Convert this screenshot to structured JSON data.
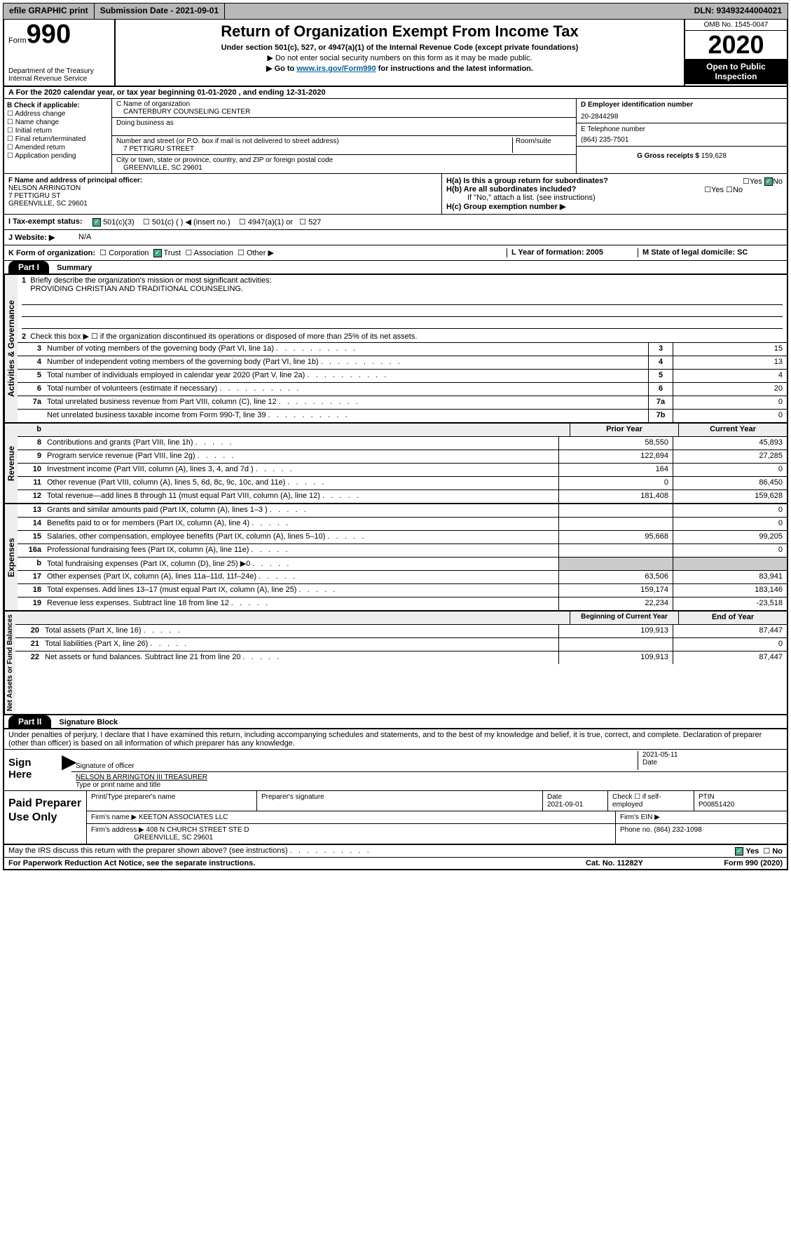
{
  "topbar": {
    "efile": "efile GRAPHIC print",
    "submission": "Submission Date - 2021-09-01",
    "dln": "DLN: 93493244004021"
  },
  "header": {
    "form_prefix": "Form",
    "form_no": "990",
    "title": "Return of Organization Exempt From Income Tax",
    "sub1": "Under section 501(c), 527, or 4947(a)(1) of the Internal Revenue Code (except private foundations)",
    "sub2": "▶ Do not enter social security numbers on this form as it may be made public.",
    "goto_pre": "▶ Go to ",
    "goto_link": "www.irs.gov/Form990",
    "goto_post": " for instructions and the latest information.",
    "dept": "Department of the Treasury\nInternal Revenue Service",
    "omb": "OMB No. 1545-0047",
    "year": "2020",
    "otp": "Open to Public Inspection"
  },
  "row_a": "A For the 2020 calendar year, or tax year beginning 01-01-2020    , and ending 12-31-2020",
  "col_b": {
    "title": "B Check if applicable:",
    "items": [
      "Address change",
      "Name change",
      "Initial return",
      "Final return/terminated",
      "Amended return",
      "Application pending"
    ]
  },
  "col_c": {
    "name_lbl": "C Name of organization",
    "name": "CANTERBURY COUNSELING CENTER",
    "dba_lbl": "Doing business as",
    "dba": "",
    "addr_lbl": "Number and street (or P.O. box if mail is not delivered to street address)",
    "room": "Room/suite",
    "addr": "7 PETTIGRU STREET",
    "city_lbl": "City or town, state or province, country, and ZIP or foreign postal code",
    "city": "GREENVILLE, SC  29601"
  },
  "col_de": {
    "d_lbl": "D Employer identification number",
    "d_val": "20-2844298",
    "e_lbl": "E Telephone number",
    "e_val": "(864) 235-7501",
    "g_lbl": "G Gross receipts $",
    "g_val": "159,628"
  },
  "row_f": {
    "f_lbl": "F Name and address of principal officer:",
    "f_name": "NELSON ARRINGTON",
    "f_addr": "7 PETTIGRU ST",
    "f_city": "GREENVILLE, SC  29601"
  },
  "row_h": {
    "ha": "H(a)  Is this a group return for subordinates?",
    "ha_yes": "Yes",
    "ha_no": "No",
    "hb": "H(b)  Are all subordinates included?",
    "hb_yes": "Yes",
    "hb_no": "No",
    "hb_note": "If \"No,\" attach a list. (see instructions)",
    "hc": "H(c)  Group exemption number ▶"
  },
  "row_i": {
    "lbl": "I    Tax-exempt status:",
    "opts": [
      "501(c)(3)",
      "501(c) (  ) ◀ (insert no.)",
      "4947(a)(1) or",
      "527"
    ]
  },
  "row_j": {
    "lbl": "J   Website: ▶",
    "val": "N/A"
  },
  "row_k": {
    "k": "K Form of organization:",
    "k_opts": [
      "Corporation",
      "Trust",
      "Association",
      "Other ▶"
    ],
    "l": "L Year of formation: 2005",
    "m": "M State of legal domicile: SC"
  },
  "part1": {
    "hdr": "Part I",
    "title": "Summary"
  },
  "governance": {
    "label": "Activities & Governance",
    "q1": "Briefly describe the organization's mission or most significant activities:",
    "q1v": "PROVIDING CHRISTIAN AND TRADITIONAL COUNSELING.",
    "q2": "Check this box ▶ ☐  if the organization discontinued its operations or disposed of more than 25% of its net assets.",
    "lines": [
      {
        "n": "3",
        "d": "Number of voting members of the governing body (Part VI, line 1a)",
        "b": "3",
        "v": "15"
      },
      {
        "n": "4",
        "d": "Number of independent voting members of the governing body (Part VI, line 1b)",
        "b": "4",
        "v": "13"
      },
      {
        "n": "5",
        "d": "Total number of individuals employed in calendar year 2020 (Part V, line 2a)",
        "b": "5",
        "v": "4"
      },
      {
        "n": "6",
        "d": "Total number of volunteers (estimate if necessary)",
        "b": "6",
        "v": "20"
      },
      {
        "n": "7a",
        "d": "Total unrelated business revenue from Part VIII, column (C), line 12",
        "b": "7a",
        "v": "0"
      },
      {
        "n": "",
        "d": "Net unrelated business taxable income from Form 990-T, line 39",
        "b": "7b",
        "v": "0"
      }
    ]
  },
  "revenue": {
    "label": "Revenue",
    "hdr_prior": "Prior Year",
    "hdr_curr": "Current Year",
    "lines": [
      {
        "n": "8",
        "d": "Contributions and grants (Part VIII, line 1h)",
        "p": "58,550",
        "c": "45,893"
      },
      {
        "n": "9",
        "d": "Program service revenue (Part VIII, line 2g)",
        "p": "122,694",
        "c": "27,285"
      },
      {
        "n": "10",
        "d": "Investment income (Part VIII, column (A), lines 3, 4, and 7d )",
        "p": "164",
        "c": "0"
      },
      {
        "n": "11",
        "d": "Other revenue (Part VIII, column (A), lines 5, 6d, 8c, 9c, 10c, and 11e)",
        "p": "0",
        "c": "86,450"
      },
      {
        "n": "12",
        "d": "Total revenue—add lines 8 through 11 (must equal Part VIII, column (A), line 12)",
        "p": "181,408",
        "c": "159,628"
      }
    ]
  },
  "expenses": {
    "label": "Expenses",
    "lines": [
      {
        "n": "13",
        "d": "Grants and similar amounts paid (Part IX, column (A), lines 1–3 )",
        "p": "",
        "c": "0"
      },
      {
        "n": "14",
        "d": "Benefits paid to or for members (Part IX, column (A), line 4)",
        "p": "",
        "c": "0"
      },
      {
        "n": "15",
        "d": "Salaries, other compensation, employee benefits (Part IX, column (A), lines 5–10)",
        "p": "95,668",
        "c": "99,205"
      },
      {
        "n": "16a",
        "d": "Professional fundraising fees (Part IX, column (A), line 11e)",
        "p": "",
        "c": "0"
      },
      {
        "n": "b",
        "d": "Total fundraising expenses (Part IX, column (D), line 25) ▶0",
        "p": "",
        "c": "",
        "grey": true
      },
      {
        "n": "17",
        "d": "Other expenses (Part IX, column (A), lines 11a–11d, 11f–24e)",
        "p": "63,506",
        "c": "83,941"
      },
      {
        "n": "18",
        "d": "Total expenses. Add lines 13–17 (must equal Part IX, column (A), line 25)",
        "p": "159,174",
        "c": "183,146"
      },
      {
        "n": "19",
        "d": "Revenue less expenses. Subtract line 18 from line 12",
        "p": "22,234",
        "c": "-23,518"
      }
    ]
  },
  "netassets": {
    "label": "Net Assets or Fund Balances",
    "hdr_prior": "Beginning of Current Year",
    "hdr_curr": "End of Year",
    "lines": [
      {
        "n": "20",
        "d": "Total assets (Part X, line 16)",
        "p": "109,913",
        "c": "87,447"
      },
      {
        "n": "21",
        "d": "Total liabilities (Part X, line 26)",
        "p": "",
        "c": "0"
      },
      {
        "n": "22",
        "d": "Net assets or fund balances. Subtract line 21 from line 20",
        "p": "109,913",
        "c": "87,447"
      }
    ]
  },
  "part2": {
    "hdr": "Part II",
    "title": "Signature Block"
  },
  "perjury": "Under penalties of perjury, I declare that I have examined this return, including accompanying schedules and statements, and to the best of my knowledge and belief, it is true, correct, and complete. Declaration of preparer (other than officer) is based on all information of which preparer has any knowledge.",
  "sign": {
    "lbl": "Sign Here",
    "sig_lbl": "Signature of officer",
    "date": "2021-05-11",
    "date_lbl": "Date",
    "name": "NELSON B ARRINGTON III TREASURER",
    "name_lbl": "Type or print name and title"
  },
  "paid": {
    "lbl": "Paid Preparer Use Only",
    "h1": "Print/Type preparer's name",
    "h2": "Preparer's signature",
    "h3": "Date",
    "h3v": "2021-09-01",
    "h4": "Check ☐ if self-employed",
    "h5": "PTIN",
    "h5v": "P00851420",
    "firm_lbl": "Firm's name    ▶",
    "firm": "KEETON ASSOCIATES LLC",
    "ein_lbl": "Firm's EIN ▶",
    "addr_lbl": "Firm's address ▶",
    "addr1": "408 N CHURCH STREET STE D",
    "addr2": "GREENVILLE, SC  29601",
    "phone_lbl": "Phone no. (864) 232-1098"
  },
  "footer": {
    "q": "May the IRS discuss this return with the preparer shown above? (see instructions)",
    "yes": "Yes",
    "no": "No",
    "pra": "For Paperwork Reduction Act Notice, see the separate instructions.",
    "cat": "Cat. No. 11282Y",
    "form": "Form 990 (2020)"
  }
}
